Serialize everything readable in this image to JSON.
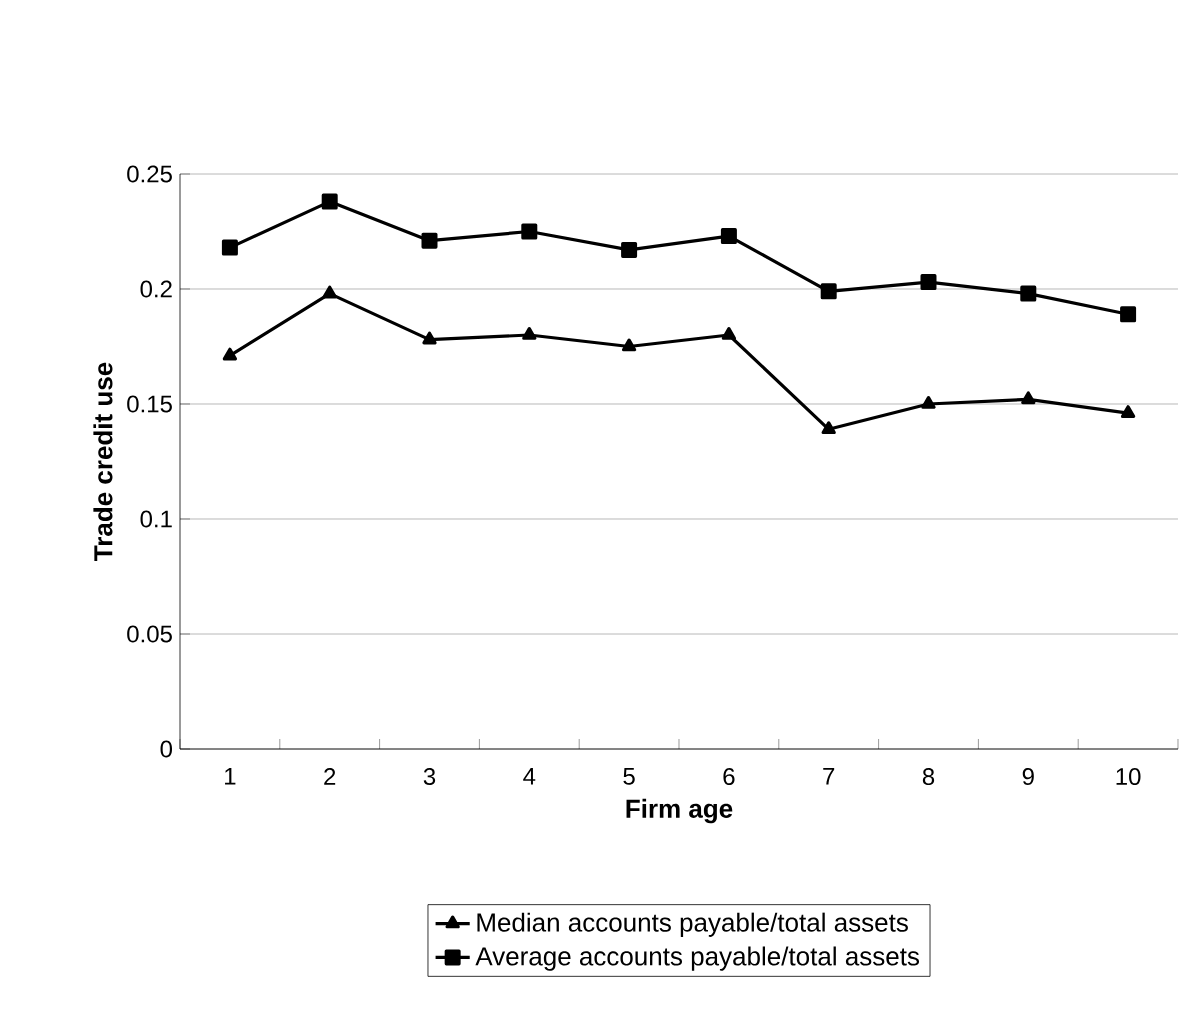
{
  "chart_data": {
    "type": "line",
    "xlabel": "Firm age",
    "ylabel": "Trade credit use",
    "categories": [
      "1",
      "2",
      "3",
      "4",
      "5",
      "6",
      "7",
      "8",
      "9",
      "10"
    ],
    "series": [
      {
        "name": "Median accounts payable/total assets",
        "color": "#000000",
        "marker": "triangle",
        "values": [
          0.171,
          0.198,
          0.178,
          0.18,
          0.175,
          0.18,
          0.139,
          0.15,
          0.152,
          0.146
        ]
      },
      {
        "name": "Average accounts payable/total assets",
        "color": "#000000",
        "marker": "square",
        "values": [
          0.218,
          0.238,
          0.221,
          0.225,
          0.217,
          0.223,
          0.199,
          0.203,
          0.198,
          0.189
        ]
      }
    ],
    "ylim": [
      0,
      0.25
    ],
    "yticks": [
      0,
      0.05,
      0.1,
      0.15,
      0.2,
      0.25
    ],
    "grid": "y",
    "legend": "bottom",
    "line_style": "solid"
  }
}
